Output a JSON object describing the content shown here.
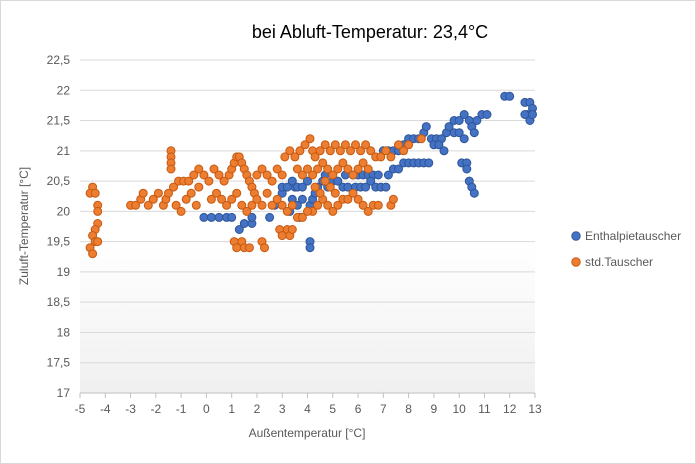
{
  "chart_data": {
    "type": "scatter",
    "title": "bei Abluft-Temperatur: 23,4°C",
    "xlabel": "Außentemperatur [°C]",
    "ylabel": "Zuluft-Temperatur [°C]",
    "xlim": [
      -5,
      13
    ],
    "ylim": [
      17,
      22.5
    ],
    "x_ticks": [
      "-5",
      "-4",
      "-3",
      "-2",
      "-1",
      "0",
      "1",
      "2",
      "3",
      "4",
      "5",
      "6",
      "7",
      "8",
      "9",
      "10",
      "11",
      "12",
      "13"
    ],
    "y_ticks": [
      "17",
      "17,5",
      "18",
      "18,5",
      "19",
      "19,5",
      "20",
      "20,5",
      "21",
      "21,5",
      "22",
      "22,5"
    ],
    "grid": true,
    "legend_position": "right",
    "series": [
      {
        "name": "Enthalpietauscher",
        "color": "#4472C4",
        "edge_color": "#2F5597",
        "points": [
          [
            -0.1,
            19.9
          ],
          [
            0.2,
            19.9
          ],
          [
            0.5,
            19.9
          ],
          [
            0.8,
            19.9
          ],
          [
            1.0,
            19.9
          ],
          [
            1.3,
            19.7
          ],
          [
            1.5,
            19.8
          ],
          [
            1.8,
            19.8
          ],
          [
            1.8,
            19.9
          ],
          [
            2.5,
            19.9
          ],
          [
            2.7,
            20.1
          ],
          [
            3.0,
            20.3
          ],
          [
            3.3,
            20.0
          ],
          [
            3.4,
            20.2
          ],
          [
            3.5,
            20.4
          ],
          [
            3.6,
            20.1
          ],
          [
            3.7,
            19.9
          ],
          [
            3.8,
            20.2
          ],
          [
            3.0,
            20.4
          ],
          [
            3.2,
            20.4
          ],
          [
            3.4,
            20.5
          ],
          [
            3.6,
            20.4
          ],
          [
            3.8,
            20.4
          ],
          [
            4.0,
            20.5
          ],
          [
            4.1,
            20.1
          ],
          [
            4.2,
            20.2
          ],
          [
            4.3,
            20.3
          ],
          [
            4.1,
            19.5
          ],
          [
            4.1,
            19.4
          ],
          [
            4.4,
            20.4
          ],
          [
            4.6,
            20.5
          ],
          [
            4.7,
            20.6
          ],
          [
            4.8,
            20.4
          ],
          [
            5.0,
            20.5
          ],
          [
            5.2,
            20.5
          ],
          [
            5.4,
            20.4
          ],
          [
            5.5,
            20.6
          ],
          [
            5.8,
            20.6
          ],
          [
            6.0,
            20.6
          ],
          [
            6.2,
            20.6
          ],
          [
            6.4,
            20.6
          ],
          [
            6.6,
            20.6
          ],
          [
            6.8,
            20.6
          ],
          [
            5.6,
            20.4
          ],
          [
            5.9,
            20.4
          ],
          [
            6.1,
            20.4
          ],
          [
            6.3,
            20.4
          ],
          [
            6.5,
            20.5
          ],
          [
            6.7,
            20.4
          ],
          [
            6.9,
            20.4
          ],
          [
            7.1,
            20.4
          ],
          [
            7.2,
            20.6
          ],
          [
            7.4,
            20.7
          ],
          [
            7.6,
            20.7
          ],
          [
            7.8,
            20.8
          ],
          [
            8.0,
            20.8
          ],
          [
            8.2,
            20.8
          ],
          [
            8.4,
            20.8
          ],
          [
            8.6,
            20.8
          ],
          [
            8.8,
            20.8
          ],
          [
            7.0,
            21.0
          ],
          [
            7.2,
            21.0
          ],
          [
            7.4,
            21.0
          ],
          [
            7.6,
            21.0
          ],
          [
            7.8,
            21.1
          ],
          [
            8.0,
            21.2
          ],
          [
            8.2,
            21.2
          ],
          [
            8.4,
            21.2
          ],
          [
            8.6,
            21.3
          ],
          [
            8.7,
            21.4
          ],
          [
            8.9,
            21.2
          ],
          [
            9.1,
            21.2
          ],
          [
            9.3,
            21.2
          ],
          [
            9.5,
            21.3
          ],
          [
            9.6,
            21.4
          ],
          [
            9.8,
            21.5
          ],
          [
            10.0,
            21.5
          ],
          [
            10.2,
            21.6
          ],
          [
            10.4,
            21.5
          ],
          [
            10.5,
            21.4
          ],
          [
            10.7,
            21.5
          ],
          [
            10.9,
            21.6
          ],
          [
            11.1,
            21.6
          ],
          [
            10.1,
            20.8
          ],
          [
            10.3,
            20.8
          ],
          [
            10.3,
            20.7
          ],
          [
            10.4,
            20.5
          ],
          [
            10.5,
            20.4
          ],
          [
            10.6,
            20.3
          ],
          [
            11.8,
            21.9
          ],
          [
            12.0,
            21.9
          ],
          [
            12.6,
            21.8
          ],
          [
            12.8,
            21.8
          ],
          [
            12.9,
            21.7
          ],
          [
            12.7,
            21.6
          ],
          [
            12.6,
            21.6
          ],
          [
            12.8,
            21.5
          ],
          [
            12.9,
            21.6
          ],
          [
            9.0,
            21.1
          ],
          [
            9.2,
            21.1
          ],
          [
            9.4,
            21.0
          ],
          [
            9.8,
            21.3
          ],
          [
            10.0,
            21.3
          ],
          [
            10.2,
            21.2
          ],
          [
            10.6,
            21.3
          ]
        ]
      },
      {
        "name": "std.Tauscher",
        "color": "#ED7D31",
        "edge_color": "#C55A11",
        "points": [
          [
            -4.5,
            20.4
          ],
          [
            -4.6,
            20.3
          ],
          [
            -4.4,
            20.3
          ],
          [
            -4.3,
            20.1
          ],
          [
            -4.3,
            20.0
          ],
          [
            -4.3,
            19.8
          ],
          [
            -4.4,
            19.7
          ],
          [
            -4.5,
            19.6
          ],
          [
            -4.4,
            19.5
          ],
          [
            -4.6,
            19.4
          ],
          [
            -4.5,
            19.3
          ],
          [
            -4.3,
            19.5
          ],
          [
            -3.0,
            20.1
          ],
          [
            -2.8,
            20.1
          ],
          [
            -2.6,
            20.2
          ],
          [
            -2.5,
            20.3
          ],
          [
            -2.3,
            20.1
          ],
          [
            -2.1,
            20.2
          ],
          [
            -1.9,
            20.3
          ],
          [
            -1.7,
            20.1
          ],
          [
            -1.6,
            20.2
          ],
          [
            -1.5,
            20.3
          ],
          [
            -1.3,
            20.4
          ],
          [
            -1.2,
            20.1
          ],
          [
            -1.0,
            20.0
          ],
          [
            -0.8,
            20.2
          ],
          [
            -0.6,
            20.3
          ],
          [
            -0.4,
            20.1
          ],
          [
            -0.3,
            20.4
          ],
          [
            -1.4,
            21.0
          ],
          [
            -1.4,
            20.9
          ],
          [
            -1.4,
            20.8
          ],
          [
            -1.4,
            20.7
          ],
          [
            -1.1,
            20.5
          ],
          [
            -0.9,
            20.5
          ],
          [
            -0.7,
            20.5
          ],
          [
            -0.5,
            20.6
          ],
          [
            -0.3,
            20.7
          ],
          [
            -0.1,
            20.6
          ],
          [
            0.1,
            20.5
          ],
          [
            0.3,
            20.7
          ],
          [
            0.5,
            20.6
          ],
          [
            0.7,
            20.5
          ],
          [
            0.9,
            20.6
          ],
          [
            1.0,
            20.7
          ],
          [
            1.1,
            20.8
          ],
          [
            1.2,
            20.9
          ],
          [
            1.3,
            20.9
          ],
          [
            1.4,
            20.8
          ],
          [
            1.5,
            20.7
          ],
          [
            1.6,
            20.6
          ],
          [
            1.7,
            20.5
          ],
          [
            1.8,
            20.4
          ],
          [
            1.9,
            20.3
          ],
          [
            0.2,
            20.2
          ],
          [
            0.4,
            20.3
          ],
          [
            0.6,
            20.2
          ],
          [
            0.8,
            20.1
          ],
          [
            1.0,
            20.2
          ],
          [
            1.2,
            20.3
          ],
          [
            1.4,
            20.1
          ],
          [
            1.6,
            20.0
          ],
          [
            1.8,
            20.1
          ],
          [
            2.0,
            20.2
          ],
          [
            2.2,
            20.1
          ],
          [
            2.4,
            20.3
          ],
          [
            2.0,
            20.6
          ],
          [
            2.2,
            20.7
          ],
          [
            2.4,
            20.6
          ],
          [
            2.6,
            20.5
          ],
          [
            2.8,
            20.7
          ],
          [
            3.0,
            20.6
          ],
          [
            1.1,
            19.5
          ],
          [
            1.2,
            19.4
          ],
          [
            1.4,
            19.5
          ],
          [
            1.5,
            19.4
          ],
          [
            1.7,
            19.4
          ],
          [
            2.2,
            19.5
          ],
          [
            2.3,
            19.4
          ],
          [
            2.9,
            19.7
          ],
          [
            3.0,
            19.6
          ],
          [
            3.2,
            19.7
          ],
          [
            3.3,
            19.6
          ],
          [
            3.4,
            19.7
          ],
          [
            3.1,
            20.9
          ],
          [
            3.3,
            21.0
          ],
          [
            3.5,
            20.9
          ],
          [
            3.7,
            21.0
          ],
          [
            3.9,
            21.1
          ],
          [
            4.1,
            21.2
          ],
          [
            4.2,
            21.0
          ],
          [
            4.3,
            20.9
          ],
          [
            4.5,
            21.0
          ],
          [
            4.7,
            21.1
          ],
          [
            4.9,
            21.0
          ],
          [
            5.1,
            21.1
          ],
          [
            5.3,
            21.0
          ],
          [
            5.5,
            21.1
          ],
          [
            5.7,
            21.0
          ],
          [
            5.9,
            21.1
          ],
          [
            6.1,
            21.0
          ],
          [
            6.3,
            21.1
          ],
          [
            6.5,
            21.0
          ],
          [
            6.7,
            20.9
          ],
          [
            6.9,
            20.9
          ],
          [
            7.1,
            21.0
          ],
          [
            7.3,
            20.9
          ],
          [
            7.6,
            21.1
          ],
          [
            7.8,
            21.0
          ],
          [
            8.0,
            21.1
          ],
          [
            8.5,
            21.2
          ],
          [
            3.6,
            20.7
          ],
          [
            3.8,
            20.6
          ],
          [
            4.0,
            20.7
          ],
          [
            4.2,
            20.6
          ],
          [
            4.4,
            20.7
          ],
          [
            4.6,
            20.8
          ],
          [
            4.8,
            20.7
          ],
          [
            5.0,
            20.6
          ],
          [
            5.2,
            20.7
          ],
          [
            5.4,
            20.8
          ],
          [
            5.6,
            20.7
          ],
          [
            5.8,
            20.6
          ],
          [
            6.0,
            20.7
          ],
          [
            6.2,
            20.8
          ],
          [
            6.4,
            20.7
          ],
          [
            4.2,
            20.0
          ],
          [
            4.4,
            20.1
          ],
          [
            4.6,
            20.2
          ],
          [
            4.8,
            20.1
          ],
          [
            5.0,
            20.0
          ],
          [
            5.2,
            20.1
          ],
          [
            5.4,
            20.2
          ],
          [
            4.3,
            20.4
          ],
          [
            4.5,
            20.3
          ],
          [
            4.7,
            20.5
          ],
          [
            4.9,
            20.4
          ],
          [
            5.1,
            20.3
          ],
          [
            5.6,
            20.2
          ],
          [
            5.8,
            20.3
          ],
          [
            6.0,
            20.2
          ],
          [
            6.2,
            20.1
          ],
          [
            6.4,
            20.0
          ],
          [
            6.6,
            20.1
          ],
          [
            6.8,
            20.1
          ],
          [
            7.3,
            20.1
          ],
          [
            7.4,
            20.2
          ],
          [
            2.6,
            20.1
          ],
          [
            2.8,
            20.2
          ],
          [
            3.0,
            20.1
          ],
          [
            3.2,
            20.0
          ],
          [
            3.4,
            20.1
          ],
          [
            3.6,
            19.9
          ],
          [
            3.8,
            19.9
          ],
          [
            4.0,
            20.0
          ]
        ]
      }
    ]
  }
}
